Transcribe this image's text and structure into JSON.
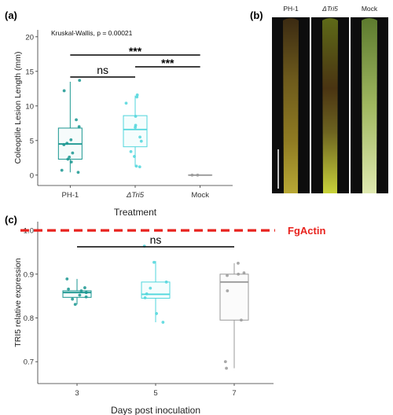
{
  "figure": {
    "panel_a_label": "(a)",
    "panel_b_label": "(b)",
    "panel_c_label": "(c)"
  },
  "panel_b": {
    "photo_labels": [
      "PH-1",
      "ΔTri5",
      "Mock"
    ]
  },
  "colors": {
    "ph1": "#1a9690",
    "tri5": "#4fd6dc",
    "mock": "#999999",
    "fgactin": "#e8231e"
  },
  "chart_data": [
    {
      "type": "box",
      "panel": "(a)",
      "title": "",
      "annotation": "Kruskal-Wallis, p = 0.00021",
      "xlabel": "Treatment",
      "ylabel": "Coleoptile Lesion Length (mm)",
      "ylim": [
        -1.5,
        21
      ],
      "yticks": [
        0,
        5,
        10,
        15,
        20
      ],
      "categories": [
        "PH-1",
        "ΔTri5",
        "Mock"
      ],
      "boxes": [
        {
          "q1": 2.3,
          "median": 4.5,
          "q3": 6.8,
          "whisker_low": 0.4,
          "whisker_high": 13.5,
          "points": [
            0.4,
            0.7,
            1.9,
            2.3,
            2.6,
            3.2,
            4.4,
            4.6,
            5.1,
            7.0,
            8.0,
            12.2,
            13.7
          ]
        },
        {
          "q1": 4.1,
          "median": 6.6,
          "q3": 8.6,
          "whisker_low": 1.2,
          "whisker_high": 11.5,
          "points": [
            1.2,
            1.3,
            2.7,
            3.4,
            4.9,
            5.5,
            6.9,
            7.2,
            8.5,
            10.4,
            11.3,
            11.6
          ]
        },
        {
          "q1": 0.0,
          "median": 0.0,
          "q3": 0.0,
          "whisker_low": 0.0,
          "whisker_high": 0.0,
          "points": [
            0.0,
            0.0
          ]
        }
      ],
      "comparisons": [
        {
          "from": "PH-1",
          "to": "Mock",
          "label": "***"
        },
        {
          "from": "PH-1",
          "to": "ΔTri5",
          "label": "ns"
        },
        {
          "from": "ΔTri5",
          "to": "Mock",
          "label": "***"
        }
      ]
    },
    {
      "type": "box",
      "panel": "(c)",
      "title": "",
      "xlabel": "Days post inoculation",
      "ylabel": "TRI5 relative expression",
      "ylim": [
        0.65,
        1.02
      ],
      "yticks": [
        0.7,
        0.8,
        0.9,
        1.0
      ],
      "categories": [
        "3",
        "5",
        "7"
      ],
      "reference_line": {
        "value": 1.0,
        "label": "FgActin"
      },
      "boxes": [
        {
          "q1": 0.847,
          "median": 0.858,
          "q3": 0.862,
          "whisker_low": 0.831,
          "whisker_high": 0.889,
          "points": [
            0.831,
            0.843,
            0.848,
            0.852,
            0.858,
            0.862,
            0.866,
            0.869,
            0.889
          ]
        },
        {
          "q1": 0.845,
          "median": 0.854,
          "q3": 0.882,
          "whisker_low": 0.79,
          "whisker_high": 0.93,
          "points": [
            0.79,
            0.81,
            0.846,
            0.855,
            0.868,
            0.882,
            0.927,
            0.964
          ]
        },
        {
          "q1": 0.795,
          "median": 0.882,
          "q3": 0.9,
          "whisker_low": 0.685,
          "whisker_high": 0.925,
          "points": [
            0.685,
            0.7,
            0.795,
            0.862,
            0.897,
            0.9,
            0.903,
            0.925
          ]
        }
      ],
      "comparisons": [
        {
          "from": "3",
          "to": "7",
          "label": "ns"
        }
      ]
    }
  ]
}
